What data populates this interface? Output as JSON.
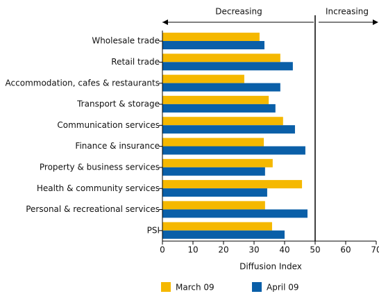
{
  "chart_data": {
    "type": "hbar",
    "categories": [
      "Wholesale trade",
      "Retail trade",
      "Accommodation, cafes & restaurants",
      "Transport & storage",
      "Communication services",
      "Finance & insurance",
      "Property & business services",
      "Health & community services",
      "Personal & recreational services",
      "PSI"
    ],
    "series": [
      {
        "name": "March 09",
        "color": "#f5b800",
        "values": [
          31.8,
          38.6,
          26.8,
          34.8,
          39.5,
          33.2,
          36.1,
          45.7,
          33.6,
          35.9
        ]
      },
      {
        "name": "April 09",
        "color": "#0a5fa8",
        "values": [
          33.4,
          42.7,
          38.6,
          37.0,
          43.4,
          46.8,
          33.6,
          34.3,
          47.5,
          40.0
        ]
      }
    ],
    "xlabel": "Diffusion Index",
    "xlim": [
      0,
      70
    ],
    "xticks": [
      0,
      10,
      20,
      30,
      40,
      50,
      60,
      70
    ],
    "reference_line": 50,
    "annotations": [
      "Decreasing",
      "Increasing"
    ],
    "legend": "bottom"
  }
}
